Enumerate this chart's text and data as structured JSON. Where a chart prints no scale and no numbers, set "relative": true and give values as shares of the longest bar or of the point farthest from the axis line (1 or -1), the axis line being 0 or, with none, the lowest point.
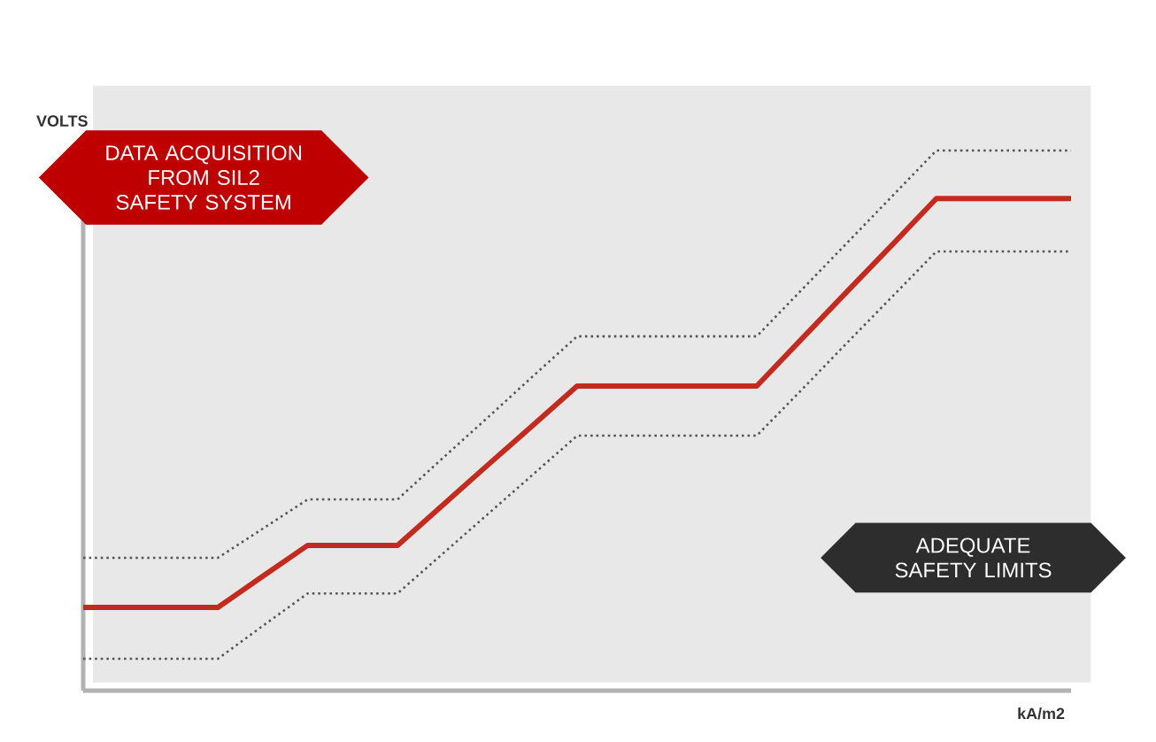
{
  "chart_data": {
    "type": "line",
    "relative": true,
    "xlabel": "kA/m2",
    "ylabel": "VOLTS",
    "categories": [
      null,
      null,
      null,
      null,
      null,
      null,
      null,
      null,
      null,
      null,
      null,
      null,
      null,
      null,
      null,
      null,
      null,
      null,
      null,
      null,
      null,
      null,
      null
    ],
    "series": [
      {
        "color": "#555555",
        "line_style": "dotted",
        "values": [
          0.246,
          0.246,
          0.246,
          0.246,
          0.3,
          0.354,
          0.354,
          0.354,
          0.43,
          0.505,
          0.581,
          0.656,
          0.656,
          0.656,
          0.656,
          0.656,
          0.742,
          0.828,
          0.914,
          1,
          1,
          1,
          1
        ]
      },
      {
        "color": "#c42b1f",
        "line_style": "solid",
        "values": [
          0.154,
          0.154,
          0.154,
          0.154,
          0.212,
          0.269,
          0.269,
          0.269,
          0.343,
          0.417,
          0.49,
          0.564,
          0.564,
          0.564,
          0.564,
          0.564,
          0.651,
          0.738,
          0.824,
          0.911,
          0.911,
          0.911,
          0.911
        ]
      },
      {
        "color": "#555555",
        "line_style": "dotted",
        "values": [
          0.059,
          0.059,
          0.059,
          0.059,
          0.12,
          0.18,
          0.18,
          0.18,
          0.253,
          0.326,
          0.399,
          0.472,
          0.472,
          0.472,
          0.472,
          0.472,
          0.557,
          0.643,
          0.728,
          0.813,
          0.813,
          0.813,
          0.813
        ]
      }
    ],
    "annotations": [
      "DATA ACQUISITION FROM SIL2 SAFETY SYSTEM",
      "ADEQUATE SAFETY LIMITS"
    ]
  }
}
